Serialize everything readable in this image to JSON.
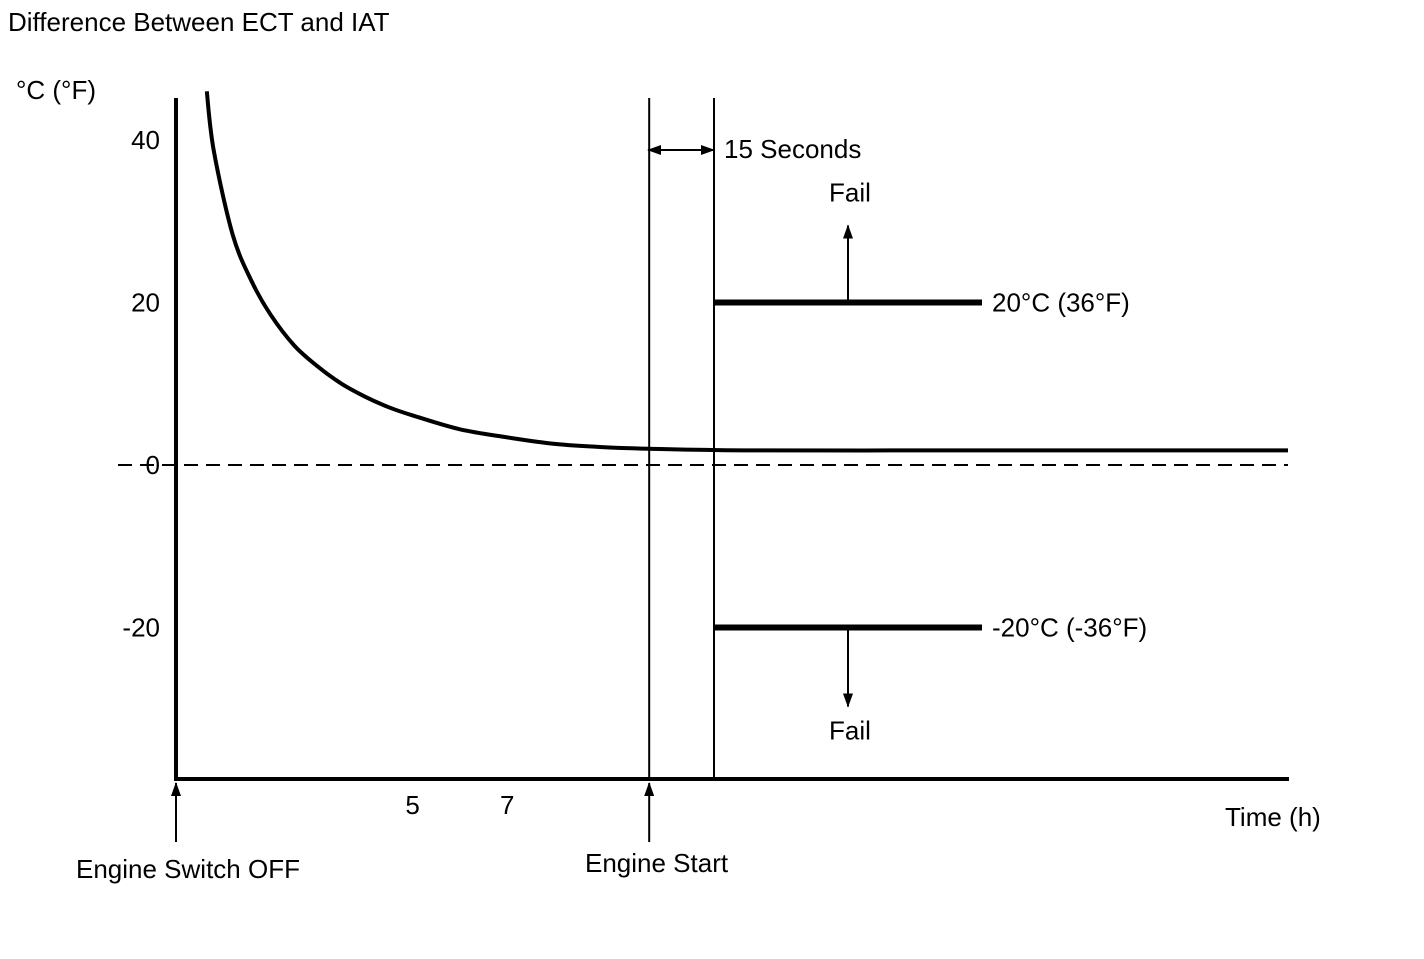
{
  "chart_data": {
    "type": "line",
    "title": "Difference Between ECT and IAT",
    "ylabel": "°C (°F)",
    "xlabel": "Time (h)",
    "yticks": [
      {
        "value": 40,
        "label": "40"
      },
      {
        "value": 20,
        "label": "20"
      },
      {
        "value": 0,
        "label": "0"
      },
      {
        "value": -20,
        "label": "-20"
      }
    ],
    "xticks": [
      {
        "value": 5,
        "label": "5"
      },
      {
        "value": 7,
        "label": "7"
      }
    ],
    "xlim": [
      0,
      23.5
    ],
    "ylim": [
      -40,
      46
    ],
    "series": [
      {
        "x": [
          0.65,
          0.8,
          1.2,
          1.6,
          2,
          2.5,
          3,
          3.5,
          4,
          4.5,
          5,
          6,
          7,
          8,
          9,
          10,
          12,
          16,
          20,
          23.5
        ],
        "y": [
          46,
          38.6,
          28.3,
          22.6,
          18.5,
          14.7,
          12.1,
          10,
          8.4,
          7.1,
          6.1,
          4.4,
          3.4,
          2.6,
          2.2,
          2,
          1.8,
          1.8,
          1.8,
          1.8
        ]
      }
    ],
    "reference_line": {
      "value": 0,
      "style": "dashed"
    },
    "events": [
      {
        "x": 0,
        "label": "Engine Switch OFF"
      },
      {
        "x": 10,
        "label": "Engine Start"
      }
    ],
    "interval": {
      "label": "15 Seconds"
    },
    "thresholds": [
      {
        "value": 20,
        "label": "20°C (36°F)",
        "direction": "up",
        "fail_label": "Fail"
      },
      {
        "value": -20,
        "label": "-20°C (-36°F)",
        "direction": "down",
        "fail_label": "Fail"
      }
    ]
  }
}
